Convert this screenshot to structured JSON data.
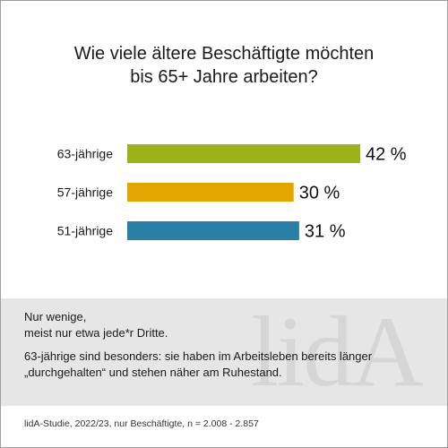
{
  "title": {
    "line1": "Wie viele ältere Beschäftigte möchten",
    "line2": "bis 65+ Jahre arbeiten?"
  },
  "chart_data": {
    "type": "bar",
    "orientation": "horizontal",
    "categories": [
      "63-jährige",
      "57-jährige",
      "51-jährige"
    ],
    "values": [
      42,
      30,
      31
    ],
    "value_labels": [
      "42 %",
      "30 %",
      "31 %"
    ],
    "colors": [
      "#9cb219",
      "#e3a600",
      "#2a7fa7"
    ],
    "xlim": [
      0,
      42
    ],
    "grid": false,
    "legend": "none"
  },
  "info": {
    "note_line1": "Nur wenige,",
    "note_line2": "meist nur etwa jede*r Dritte.",
    "note_paragraph": "63-jährige sind besonders: sie haben im Arbeitsleben bereits länger „durchgehalten“ und stehen näher am Ruhestand.",
    "watermark": "lidA"
  },
  "source": "lidA-Studie, 2022/23, nur Beschäftigte, n = 2.008 - 2.857"
}
